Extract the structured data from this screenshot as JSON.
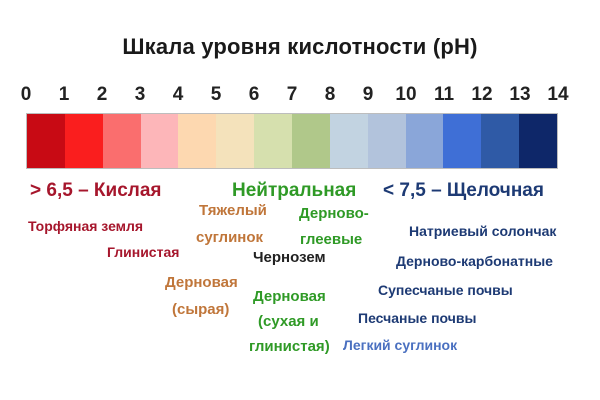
{
  "title": "Шкала  уровня кислотности (рН)",
  "ticks": [
    "0",
    "1",
    "2",
    "3",
    "4",
    "5",
    "6",
    "7",
    "8",
    "9",
    "10",
    "11",
    "12",
    "13",
    "14"
  ],
  "segment_colors": [
    "#c80a14",
    "#fa1e1e",
    "#fa6e6e",
    "#fdb6b9",
    "#fdd8b0",
    "#f4e2bb",
    "#d6e0ae",
    "#b0c88a",
    "#c2d3e1",
    "#b2c3dc",
    "#8aa6d9",
    "#3f6fd6",
    "#2f5aa6",
    "#0e2769"
  ],
  "categories": {
    "acid": {
      "text": "> 6,5 – Кислая",
      "color": "#a6162c"
    },
    "neutral": {
      "text": "Нейтральная",
      "color": "#2f9a26"
    },
    "alkaline": {
      "text": "< 7,5 – Щелочная",
      "color": "#1d3a74"
    }
  },
  "soils": {
    "peat": "Торфяная земля",
    "clay": "Глинистая",
    "heavy_loam_1": "Тяжелый",
    "heavy_loam_2": "суглинок",
    "sod_gley_1": "Дерново-",
    "sod_gley_2": "глеевые",
    "chernozem": "Чернозем",
    "sod_wet_1": "Дерновая",
    "sod_wet_2": "(сырая)",
    "sod_dry_1": "Дерновая",
    "sod_dry_2": "(сухая и",
    "sod_dry_3": "глинистая)",
    "solonetz": "Натриевый солончак",
    "sod_carbonate": "Дерново-карбонатные",
    "sandy_loam": "Супесчаные почвы",
    "sandy": "Песчаные почвы",
    "light_loam": "Легкий суглинок"
  },
  "colors": {
    "acid_soil": "#a6162c",
    "heavy_loam": "#c0763a",
    "neutral_soil": "#2f9a26",
    "black": "#222222",
    "alkaline_dark": "#1d3a74",
    "alkaline_light": "#4a70c0"
  }
}
